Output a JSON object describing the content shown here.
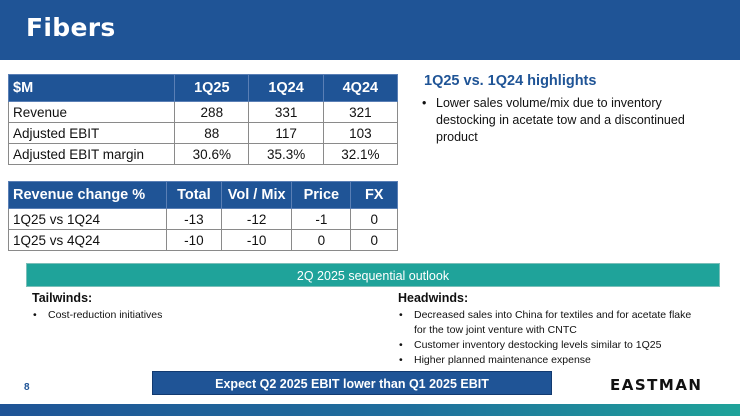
{
  "header": {
    "title": "Fibers"
  },
  "financials": {
    "headers": [
      "$M",
      "1Q25",
      "1Q24",
      "4Q24"
    ],
    "rows": [
      [
        "Revenue",
        "288",
        "331",
        "321"
      ],
      [
        "Adjusted EBIT",
        "88",
        "117",
        "103"
      ],
      [
        "Adjusted EBIT margin",
        "30.6%",
        "35.3%",
        "32.1%"
      ]
    ]
  },
  "revenue_change": {
    "headers": [
      "Revenue change %",
      "Total",
      "Vol / Mix",
      "Price",
      "FX"
    ],
    "rows": [
      [
        "1Q25 vs 1Q24",
        "-13",
        "-12",
        "-1",
        "0"
      ],
      [
        "1Q25 vs 4Q24",
        "-10",
        "-10",
        "0",
        "0"
      ]
    ]
  },
  "highlights": {
    "title": "1Q25 vs. 1Q24 highlights",
    "bullet": "•",
    "items": [
      "Lower sales volume/mix due to inventory destocking in acetate tow and a discontinued product"
    ]
  },
  "outlook": {
    "title": "2Q 2025 sequential outlook",
    "tailwinds": {
      "title": "Tailwinds:",
      "items": [
        "Cost-reduction initiatives"
      ]
    },
    "headwinds": {
      "title": "Headwinds:",
      "items": [
        "Decreased sales into China for textiles and for acetate flake for the tow joint venture with CNTC",
        "Customer inventory destocking levels similar to 1Q25",
        "Higher planned maintenance expense"
      ]
    }
  },
  "footer": {
    "expect": "Expect Q2 2025 EBIT lower than Q1 2025 EBIT",
    "page_number": "8",
    "logo": "EASTMAN"
  },
  "colors": {
    "primary": "#1f5496",
    "teal": "#1fa39a"
  }
}
